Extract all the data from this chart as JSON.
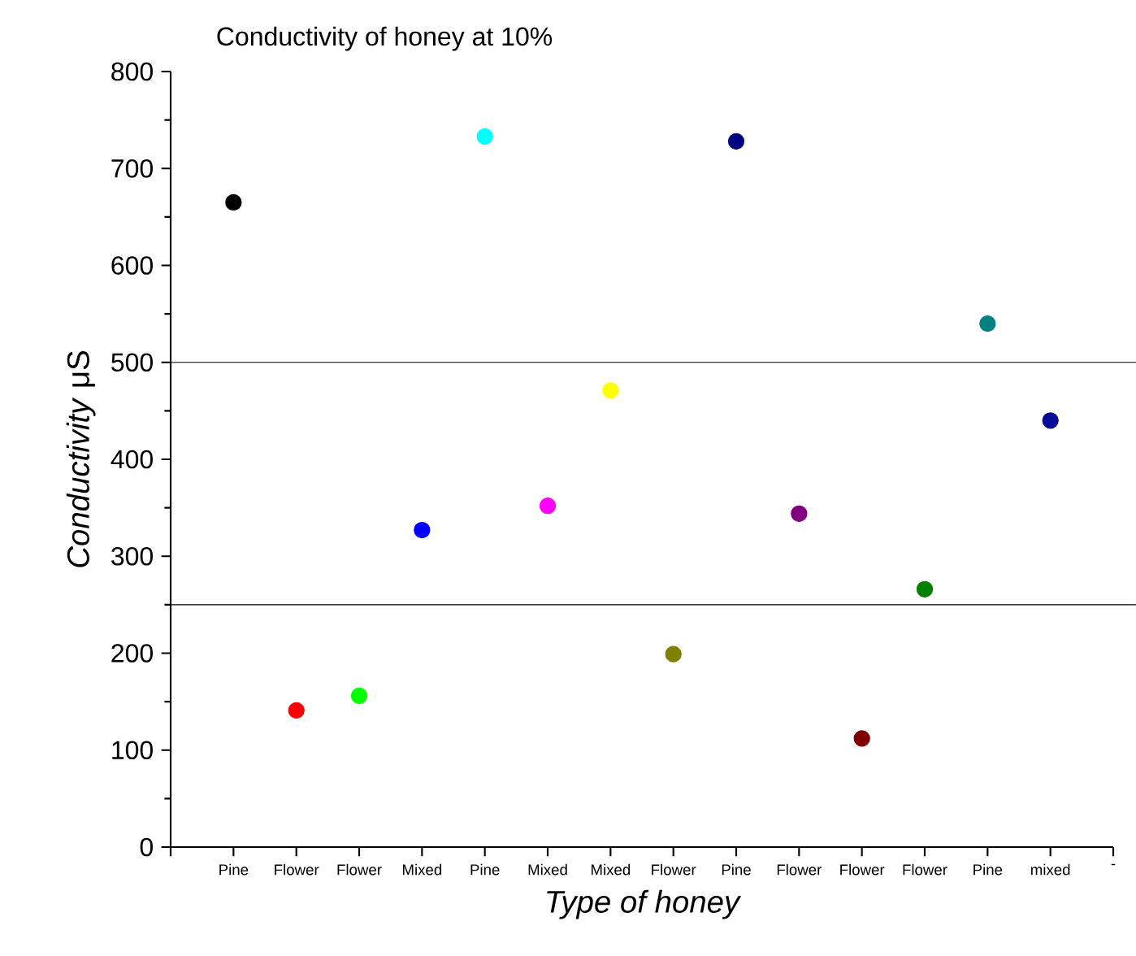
{
  "chart_data": {
    "type": "scatter",
    "title": "Conductivity of honey at 10%",
    "xlabel": "Type of honey",
    "ylabel": "*Conductivity* μS",
    "categories": [
      null,
      "Pine",
      "Flower",
      "Flower",
      "Mixed",
      "Pine",
      "Mixed",
      "Mixed",
      "Flower",
      "Pine",
      "Flower",
      "Flower",
      "Flower",
      "Pine",
      "mixed",
      "-"
    ],
    "values": [
      null,
      665,
      141,
      156,
      327,
      733,
      352,
      471,
      199,
      728,
      344,
      112,
      266,
      540,
      440,
      null
    ],
    "colors": [
      null,
      "#000000",
      "#ff0000",
      "#00ff00",
      "#0000ff",
      "#00ffff",
      "#ff00ff",
      "#ffff00",
      "#808000",
      "#000080",
      "#800080",
      "#800000",
      "#008000",
      "#008080",
      "#0a0a9a",
      null
    ],
    "ylim": [
      0,
      800
    ],
    "yticks": [
      0,
      100,
      200,
      300,
      400,
      500,
      600,
      700,
      800
    ],
    "marker": "circle",
    "ref_lines": [
      {
        "axis": "y",
        "value": 500,
        "color": "#000000"
      },
      {
        "axis": "y",
        "value": 250,
        "color": "#000000"
      }
    ]
  }
}
